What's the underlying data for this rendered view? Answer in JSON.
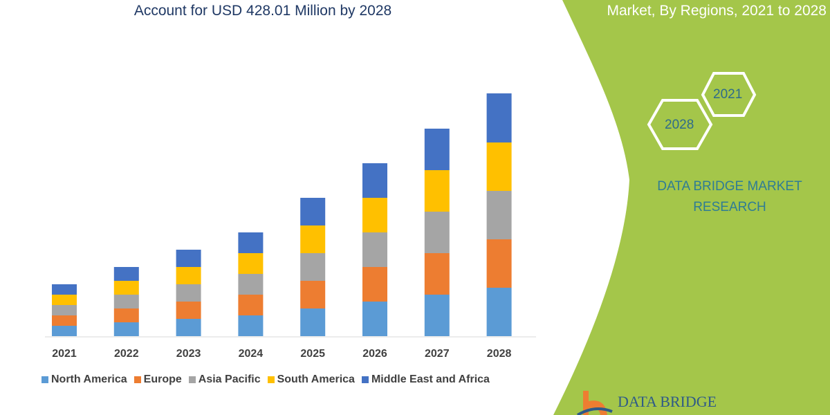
{
  "header": {
    "title": "Account for USD 428.01 Million by 2028",
    "right_title": "Market, By Regions, 2021 to 2028"
  },
  "panel": {
    "hex_2028": "2028",
    "hex_2021": "2021",
    "brand": "DATA BRIDGE MARKET RESEARCH",
    "logo_text": "DATA BRIDGE",
    "green": "#a4c64a"
  },
  "chart_data": {
    "type": "bar",
    "stacked": true,
    "categories": [
      "2021",
      "2022",
      "2023",
      "2024",
      "2025",
      "2026",
      "2027",
      "2028"
    ],
    "series": [
      {
        "name": "North America",
        "color": "#5b9bd5",
        "values": [
          15,
          20,
          25,
          30,
          40,
          50,
          60,
          70
        ]
      },
      {
        "name": "Europe",
        "color": "#ed7d31",
        "values": [
          15,
          20,
          25,
          30,
          40,
          50,
          60,
          70
        ]
      },
      {
        "name": "Asia Pacific",
        "color": "#a5a5a5",
        "values": [
          15,
          20,
          25,
          30,
          40,
          50,
          60,
          70
        ]
      },
      {
        "name": "South America",
        "color": "#ffc000",
        "values": [
          15,
          20,
          25,
          30,
          40,
          50,
          60,
          70
        ]
      },
      {
        "name": "Middle East and Africa",
        "color": "#4472c4",
        "values": [
          15,
          20,
          25,
          30,
          40,
          50,
          60,
          71
        ]
      }
    ],
    "title": "Account for USD 428.01 Million by 2028",
    "xlabel": "",
    "ylabel": "",
    "grid": false,
    "legend": "bottom"
  }
}
